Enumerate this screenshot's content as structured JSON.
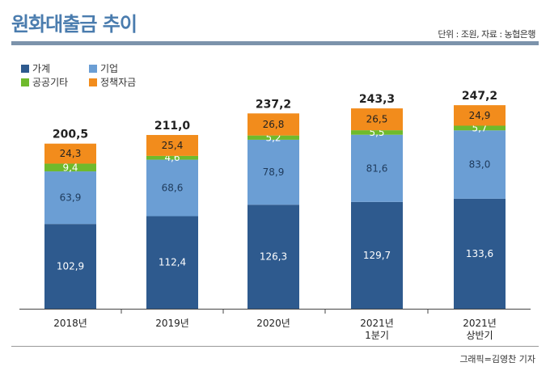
{
  "header": {
    "title": "원화대출금 추이",
    "unit_source": "단위 : 조원, 자료 : 농협은행"
  },
  "footer": {
    "credit": "그래픽=김영찬 기자"
  },
  "colors": {
    "household": "#2e5a8e",
    "corporate": "#6b9ed4",
    "public": "#6fba2c",
    "policy": "#f28c1c"
  },
  "chart_data": {
    "type": "bar",
    "stacked": true,
    "title": "원화대출금 추이",
    "unit": "조원",
    "categories": [
      [
        "2018년"
      ],
      [
        "2019년"
      ],
      [
        "2020년"
      ],
      [
        "2021년",
        "1분기"
      ],
      [
        "2021년",
        "상반기"
      ]
    ],
    "series": [
      {
        "key": "household",
        "name": "가계",
        "values": [
          102.9,
          112.4,
          126.3,
          129.7,
          133.6
        ],
        "labels": [
          "102,9",
          "112,4",
          "126,3",
          "129,7",
          "133,6"
        ]
      },
      {
        "key": "corporate",
        "name": "기업",
        "values": [
          63.9,
          68.6,
          78.9,
          81.6,
          83.0
        ],
        "labels": [
          "63,9",
          "68,6",
          "78,9",
          "81,6",
          "83,0"
        ]
      },
      {
        "key": "public",
        "name": "공공기타",
        "values": [
          9.4,
          4.6,
          5.2,
          5.5,
          5.7
        ],
        "labels": [
          "9,4",
          "4,6",
          "5,2",
          "5,5",
          "5,7"
        ]
      },
      {
        "key": "policy",
        "name": "정책자금",
        "values": [
          24.3,
          25.4,
          26.8,
          26.5,
          24.9
        ],
        "labels": [
          "24,3",
          "25,4",
          "26,8",
          "26,5",
          "24,9"
        ]
      }
    ],
    "totals": [
      200.5,
      211.0,
      237.2,
      243.3,
      247.2
    ],
    "total_labels": [
      "200,5",
      "211,0",
      "237,2",
      "243,3",
      "247,2"
    ],
    "ylim": [
      0,
      265
    ]
  }
}
